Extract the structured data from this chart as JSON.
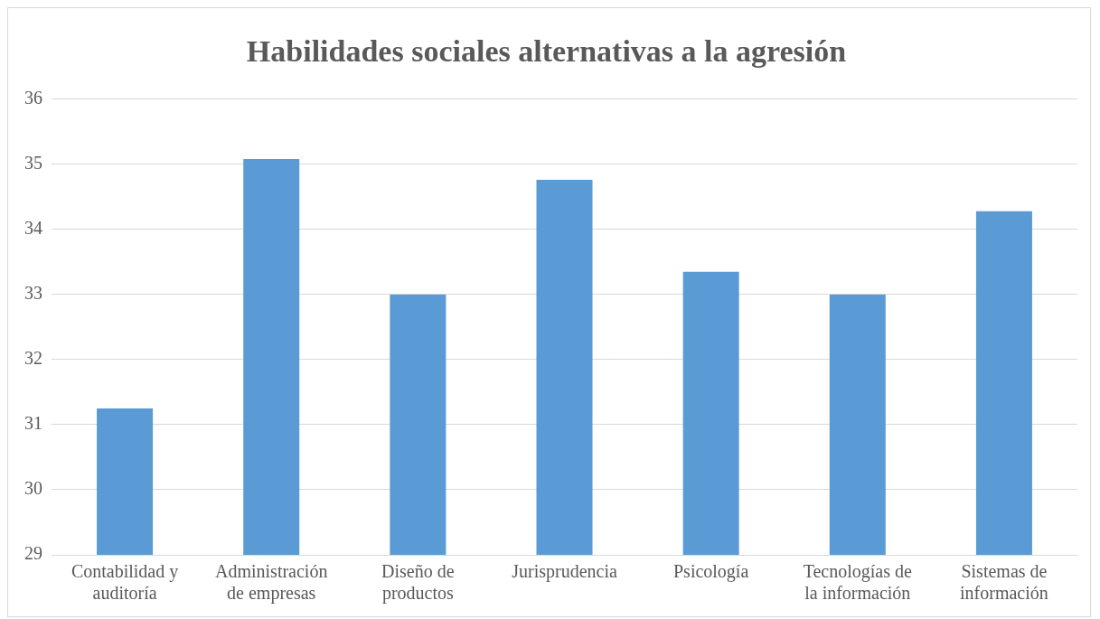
{
  "chart_data": {
    "type": "bar",
    "title": "Habilidades sociales alternativas a la agresión",
    "categories": [
      "Contabilidad y auditoría",
      "Administración de empresas",
      "Diseño de productos",
      "Jurisprudencia",
      "Psicología",
      "Tecnologías de la información",
      "Sistemas de información"
    ],
    "values": [
      31.25,
      35.08,
      33,
      34.76,
      33.35,
      33,
      34.28
    ],
    "color": "#5b9bd5",
    "ylim": [
      29,
      36
    ],
    "yticks": [
      29,
      30,
      31,
      32,
      33,
      34,
      35,
      36
    ],
    "grid": "y",
    "legend": false
  }
}
